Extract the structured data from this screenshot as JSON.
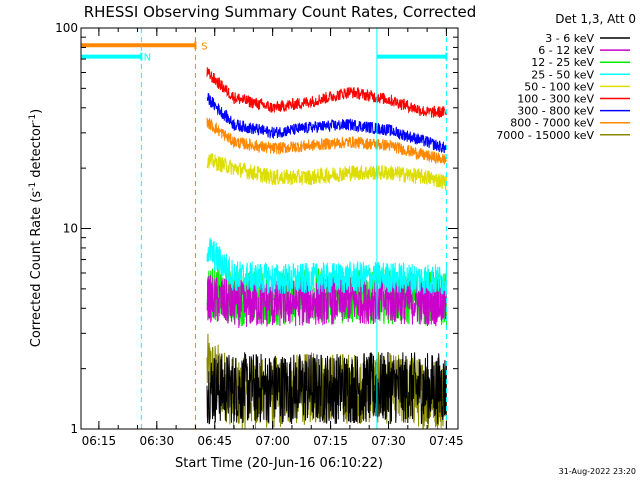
{
  "chart_data": {
    "type": "line",
    "title": "RHESSI Observing Summary Count Rates, Corrected",
    "xlabel": "Start Time (20-Jun-16 06:10:22)",
    "ylabel": "Corrected Count Rate (s",
    "ylabel_sup": "-1",
    "ylabel_mid": " detector",
    "ylabel_end": ")",
    "y_scale": "log",
    "ylim": [
      1,
      100
    ],
    "xlim": [
      "06:10:22",
      "07:48:00"
    ],
    "x_ticks": [
      "06:15",
      "06:30",
      "06:45",
      "07:00",
      "07:15",
      "07:30",
      "07:45"
    ],
    "y_ticks": [
      "1",
      "10",
      "100"
    ],
    "legend_title": "Det 1,3, Att 0",
    "legend_position": "outside-right",
    "grid": false,
    "timestamp": "31-Aug-2022 23:20",
    "series": [
      {
        "name": "3 - 6 keV",
        "color": "#000000",
        "x": [
          "06:43",
          "06:50",
          "07:00",
          "07:10",
          "07:20",
          "07:30",
          "07:40",
          "07:45"
        ],
        "values": [
          1.6,
          1.6,
          1.6,
          1.6,
          1.6,
          1.6,
          1.6,
          1.6
        ]
      },
      {
        "name": "6 - 12 keV",
        "color": "#cc00cc",
        "x": [
          "06:43",
          "06:50",
          "07:00",
          "07:10",
          "07:20",
          "07:30",
          "07:40",
          "07:45"
        ],
        "values": [
          4.5,
          4.2,
          4.2,
          4.3,
          4.4,
          4.4,
          4.3,
          4.2
        ]
      },
      {
        "name": "12 - 25 keV",
        "color": "#00ee00",
        "x": [
          "06:43",
          "06:50",
          "07:00",
          "07:10",
          "07:20",
          "07:30",
          "07:40",
          "07:45"
        ],
        "values": [
          4.8,
          4.5,
          4.5,
          4.6,
          4.6,
          4.6,
          4.5,
          4.4
        ]
      },
      {
        "name": "25 - 50 keV",
        "color": "#00ffff",
        "x": [
          "06:43",
          "06:50",
          "07:00",
          "07:10",
          "07:20",
          "07:30",
          "07:40",
          "07:45"
        ],
        "values": [
          8.0,
          5.8,
          5.6,
          5.6,
          5.7,
          5.7,
          5.6,
          5.5
        ]
      },
      {
        "name": "50 - 100 keV",
        "color": "#dddd00",
        "x": [
          "06:43",
          "06:50",
          "07:00",
          "07:10",
          "07:20",
          "07:30",
          "07:40",
          "07:45"
        ],
        "values": [
          22,
          20,
          18,
          18,
          19,
          19,
          18,
          17
        ]
      },
      {
        "name": "100 - 300 keV",
        "color": "#ff0000",
        "x": [
          "06:43",
          "06:50",
          "07:00",
          "07:10",
          "07:20",
          "07:30",
          "07:40",
          "07:45"
        ],
        "values": [
          60,
          45,
          40,
          43,
          48,
          44,
          38,
          38
        ]
      },
      {
        "name": "300 - 800 keV",
        "color": "#0000ff",
        "x": [
          "06:43",
          "06:50",
          "07:00",
          "07:10",
          "07:20",
          "07:30",
          "07:40",
          "07:45"
        ],
        "values": [
          45,
          33,
          30,
          32,
          33,
          31,
          27,
          25
        ]
      },
      {
        "name": "800 - 7000 keV",
        "color": "#ff8800",
        "x": [
          "06:43",
          "06:50",
          "07:00",
          "07:10",
          "07:20",
          "07:30",
          "07:40",
          "07:45"
        ],
        "values": [
          34,
          27,
          25,
          26,
          27,
          26,
          23,
          22
        ]
      },
      {
        "name": "7000 - 15000 keV",
        "color": "#888800",
        "x": [
          "06:43",
          "06:50",
          "07:00",
          "07:10",
          "07:20",
          "07:30",
          "07:40",
          "07:45"
        ],
        "values": [
          2.0,
          1.5,
          1.5,
          1.6,
          1.6,
          1.6,
          1.5,
          1.5
        ]
      }
    ],
    "markers": {
      "night": {
        "label": "N",
        "color": "#00ffff",
        "spans": [
          [
            "06:10:22",
            "06:26"
          ],
          [
            "07:27",
            "07:45"
          ]
        ],
        "level": 72
      },
      "saa": {
        "label": "S",
        "color": "#ff8800",
        "spans": [
          [
            "06:10:22",
            "06:40"
          ]
        ],
        "level": 82
      },
      "vlines": [
        {
          "t": "06:26",
          "color": "#00ffff",
          "dashed": true
        },
        {
          "t": "06:40",
          "color": "#ff8800",
          "dashed": true
        },
        {
          "t": "07:27",
          "color": "#00ffff",
          "dashed": false
        },
        {
          "t": "07:45",
          "color": "#00ffff",
          "dashed": true
        }
      ]
    }
  }
}
